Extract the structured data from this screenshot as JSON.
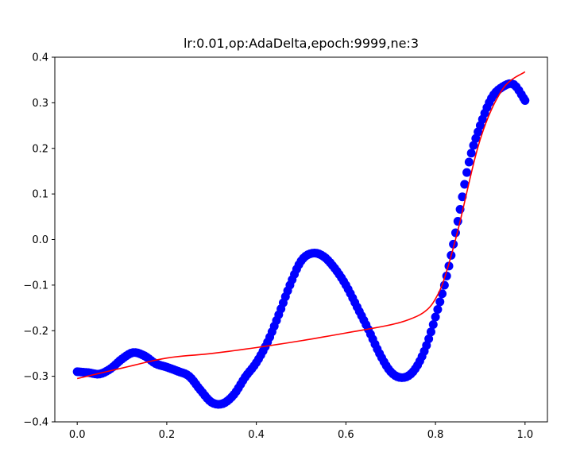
{
  "chart_data": {
    "type": "scatter",
    "title": "lr:0.01,op:AdaDelta,epoch:9999,ne:3",
    "xlabel": "",
    "ylabel": "",
    "xlim": [
      -0.05,
      1.05
    ],
    "ylim": [
      -0.4,
      0.4
    ],
    "grid": false,
    "x_ticks": [
      0.0,
      0.2,
      0.4,
      0.6,
      0.8,
      1.0
    ],
    "x_tick_labels": [
      "0.0",
      "0.2",
      "0.4",
      "0.6",
      "0.8",
      "1.0"
    ],
    "y_ticks": [
      -0.4,
      -0.3,
      -0.2,
      -0.1,
      0.0,
      0.1,
      0.2,
      0.3,
      0.4
    ],
    "y_tick_labels": [
      "−0.4",
      "−0.3",
      "−0.2",
      "−0.1",
      "0.0",
      "0.1",
      "0.2",
      "0.3",
      "0.4"
    ],
    "series": [
      {
        "kind": "scatter",
        "color": "#0000ff",
        "x": [
          0.0,
          0.025,
          0.05,
          0.075,
          0.1,
          0.125,
          0.15,
          0.175,
          0.2,
          0.225,
          0.25,
          0.275,
          0.3,
          0.325,
          0.35,
          0.375,
          0.4,
          0.425,
          0.45,
          0.475,
          0.5,
          0.525,
          0.55,
          0.575,
          0.6,
          0.625,
          0.65,
          0.675,
          0.7,
          0.725,
          0.75,
          0.775,
          0.8,
          0.825,
          0.85,
          0.875,
          0.9,
          0.925,
          0.95,
          0.975,
          1.0
        ],
        "y": [
          -0.29,
          -0.292,
          -0.295,
          -0.283,
          -0.262,
          -0.248,
          -0.255,
          -0.272,
          -0.28,
          -0.289,
          -0.3,
          -0.33,
          -0.357,
          -0.36,
          -0.34,
          -0.302,
          -0.27,
          -0.225,
          -0.165,
          -0.1,
          -0.047,
          -0.03,
          -0.037,
          -0.063,
          -0.1,
          -0.148,
          -0.197,
          -0.25,
          -0.29,
          -0.303,
          -0.29,
          -0.245,
          -0.17,
          -0.08,
          0.04,
          0.17,
          0.25,
          0.31,
          0.335,
          0.34,
          0.305
        ]
      },
      {
        "kind": "line",
        "color": "#ff0000",
        "x": [
          0.0,
          0.1,
          0.2,
          0.3,
          0.4,
          0.5,
          0.6,
          0.7,
          0.75,
          0.78,
          0.8,
          0.82,
          0.85,
          0.9,
          0.95,
          1.0
        ],
        "y": [
          -0.305,
          -0.282,
          -0.26,
          -0.25,
          -0.237,
          -0.222,
          -0.205,
          -0.187,
          -0.172,
          -0.155,
          -0.13,
          -0.085,
          0.02,
          0.22,
          0.33,
          0.368
        ]
      }
    ]
  }
}
